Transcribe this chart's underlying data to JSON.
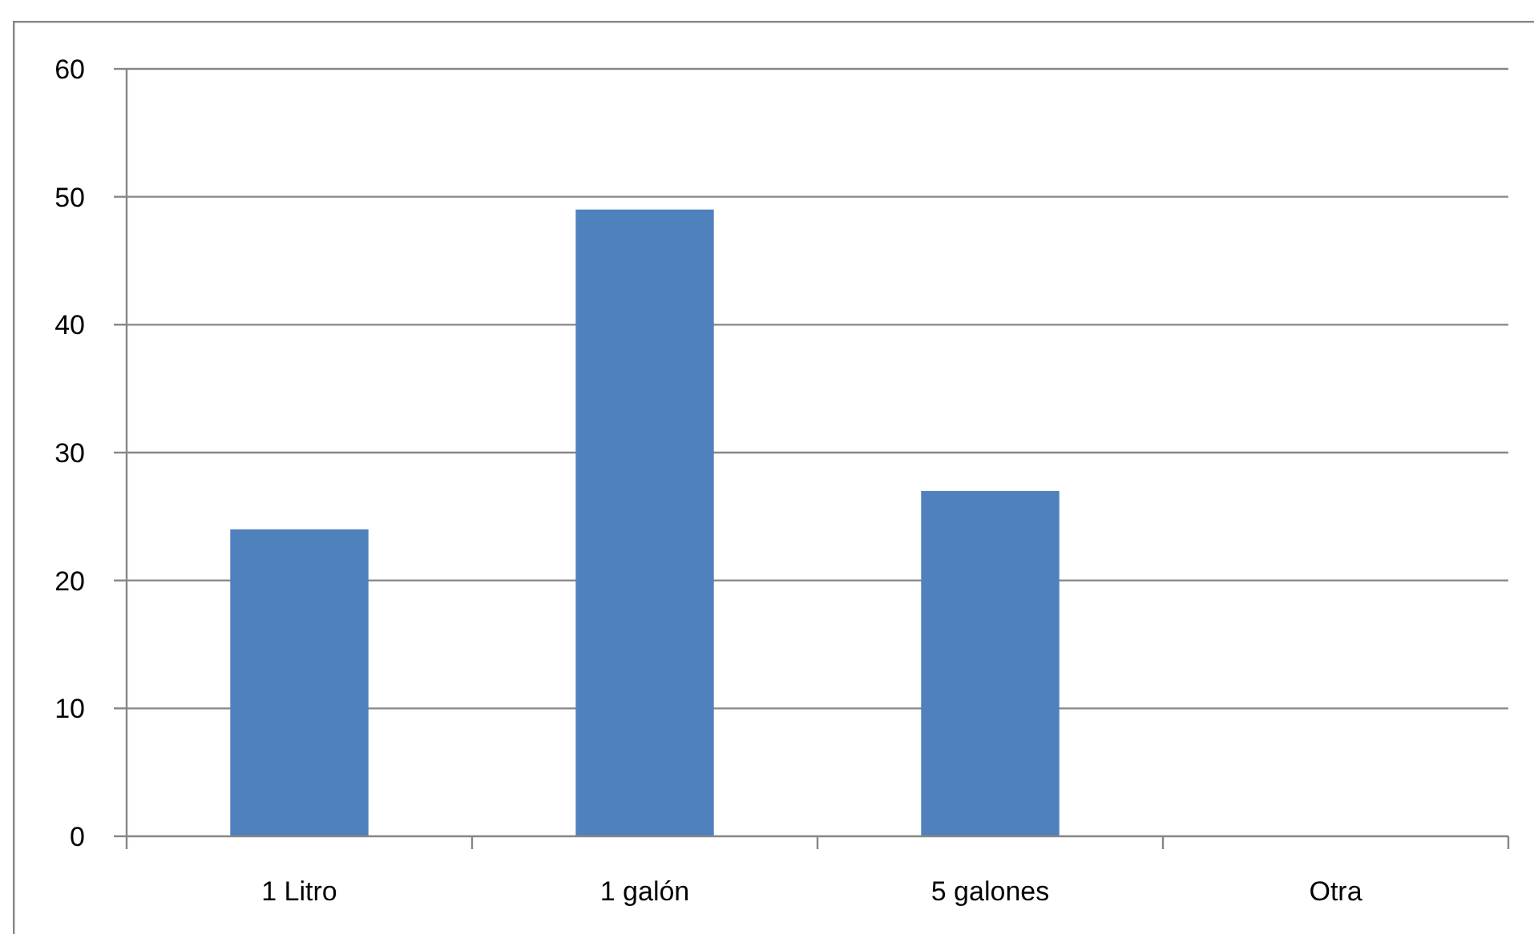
{
  "chart_data": {
    "type": "bar",
    "categories": [
      "1 Litro",
      "1 galón",
      "5 galones",
      "Otra"
    ],
    "values": [
      24,
      49,
      27,
      0
    ],
    "color": "#4f81bd",
    "ylim": [
      0,
      60
    ],
    "yticks": [
      0,
      10,
      20,
      30,
      40,
      50,
      60
    ],
    "grid": "y"
  }
}
